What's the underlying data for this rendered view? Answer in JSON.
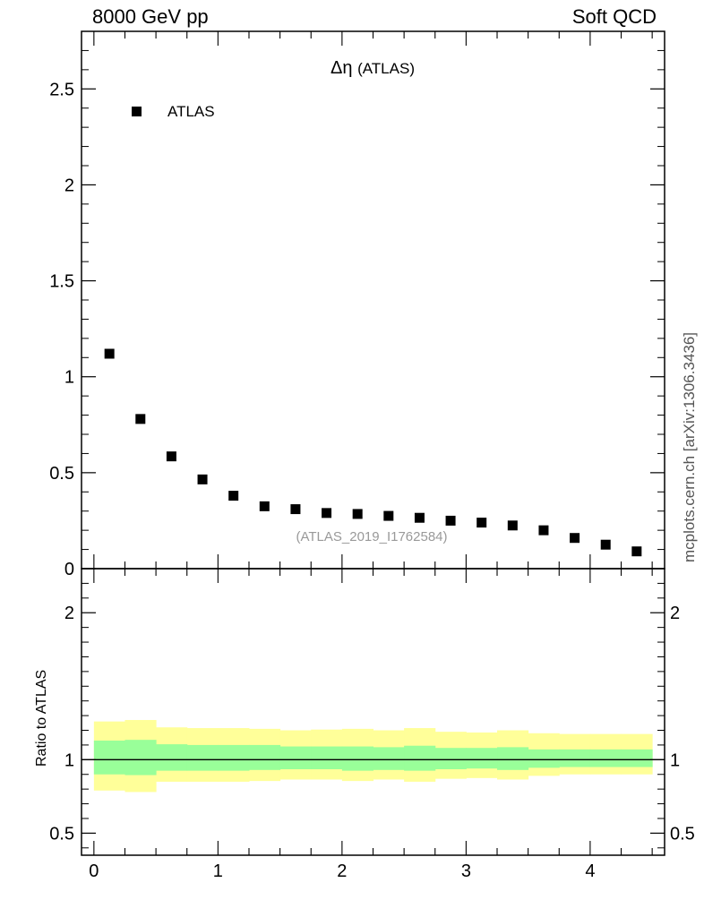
{
  "header": {
    "left": "8000 GeV pp",
    "right": "Soft QCD"
  },
  "side_note": "mcplots.cern.ch [arXiv:1306.3436]",
  "chart_data": [
    {
      "type": "scatter",
      "title": "Δη (ATLAS)",
      "title_symbol": "Δη",
      "title_suffix": "(ATLAS)",
      "analysis_label": "(ATLAS_2019_I1762584)",
      "legend": {
        "entry": "ATLAS",
        "placement": "top-left"
      },
      "xlim": [
        -0.1,
        4.6
      ],
      "ylim": [
        0,
        2.8
      ],
      "yticks": [
        0,
        0.5,
        1,
        1.5,
        2,
        2.5
      ],
      "ytick_labels": [
        "0",
        "0.5",
        "1",
        "1.5",
        "2",
        "2.5"
      ],
      "series": [
        {
          "name": "ATLAS",
          "color": "#000000",
          "x": [
            0.125,
            0.375,
            0.625,
            0.875,
            1.125,
            1.375,
            1.625,
            1.875,
            2.125,
            2.375,
            2.625,
            2.875,
            3.125,
            3.375,
            3.625,
            3.875,
            4.125,
            4.375
          ],
          "y": [
            1.12,
            0.78,
            0.585,
            0.465,
            0.38,
            0.325,
            0.31,
            0.29,
            0.285,
            0.275,
            0.265,
            0.25,
            0.24,
            0.225,
            0.2,
            0.16,
            0.125,
            0.09
          ]
        }
      ]
    },
    {
      "type": "area",
      "ylabel": "Ratio to ATLAS",
      "xlim": [
        -0.1,
        4.6
      ],
      "ylim": [
        0.35,
        2.3
      ],
      "xticks": [
        0,
        1,
        2,
        3,
        4
      ],
      "xtick_labels": [
        "0",
        "1",
        "2",
        "3",
        "4"
      ],
      "yticks": [
        0.5,
        1,
        2
      ],
      "ytick_labels": [
        "0.5",
        "1",
        "2"
      ],
      "reference_line": 1,
      "bin_edges": [
        0,
        0.25,
        0.5,
        0.75,
        1.0,
        1.25,
        1.5,
        1.75,
        2.0,
        2.25,
        2.5,
        2.75,
        3.0,
        3.25,
        3.5,
        3.75,
        4.0,
        4.25,
        4.5
      ],
      "bands": [
        {
          "name": "total uncertainty",
          "color": "#ffff99",
          "lower": [
            0.79,
            0.78,
            0.85,
            0.85,
            0.85,
            0.855,
            0.865,
            0.865,
            0.855,
            0.865,
            0.85,
            0.87,
            0.875,
            0.865,
            0.89,
            0.9,
            0.9,
            0.9
          ],
          "upper": [
            1.26,
            1.27,
            1.22,
            1.215,
            1.215,
            1.21,
            1.2,
            1.205,
            1.21,
            1.2,
            1.215,
            1.19,
            1.185,
            1.2,
            1.18,
            1.175,
            1.175,
            1.175
          ]
        },
        {
          "name": "stat uncertainty",
          "color": "#99ff99",
          "lower": [
            0.9,
            0.895,
            0.925,
            0.925,
            0.925,
            0.93,
            0.935,
            0.935,
            0.925,
            0.93,
            0.925,
            0.935,
            0.94,
            0.93,
            0.945,
            0.95,
            0.95,
            0.95
          ],
          "upper": [
            1.13,
            1.135,
            1.105,
            1.1,
            1.1,
            1.1,
            1.09,
            1.09,
            1.09,
            1.085,
            1.095,
            1.08,
            1.08,
            1.085,
            1.07,
            1.07,
            1.07,
            1.07
          ]
        }
      ]
    }
  ]
}
